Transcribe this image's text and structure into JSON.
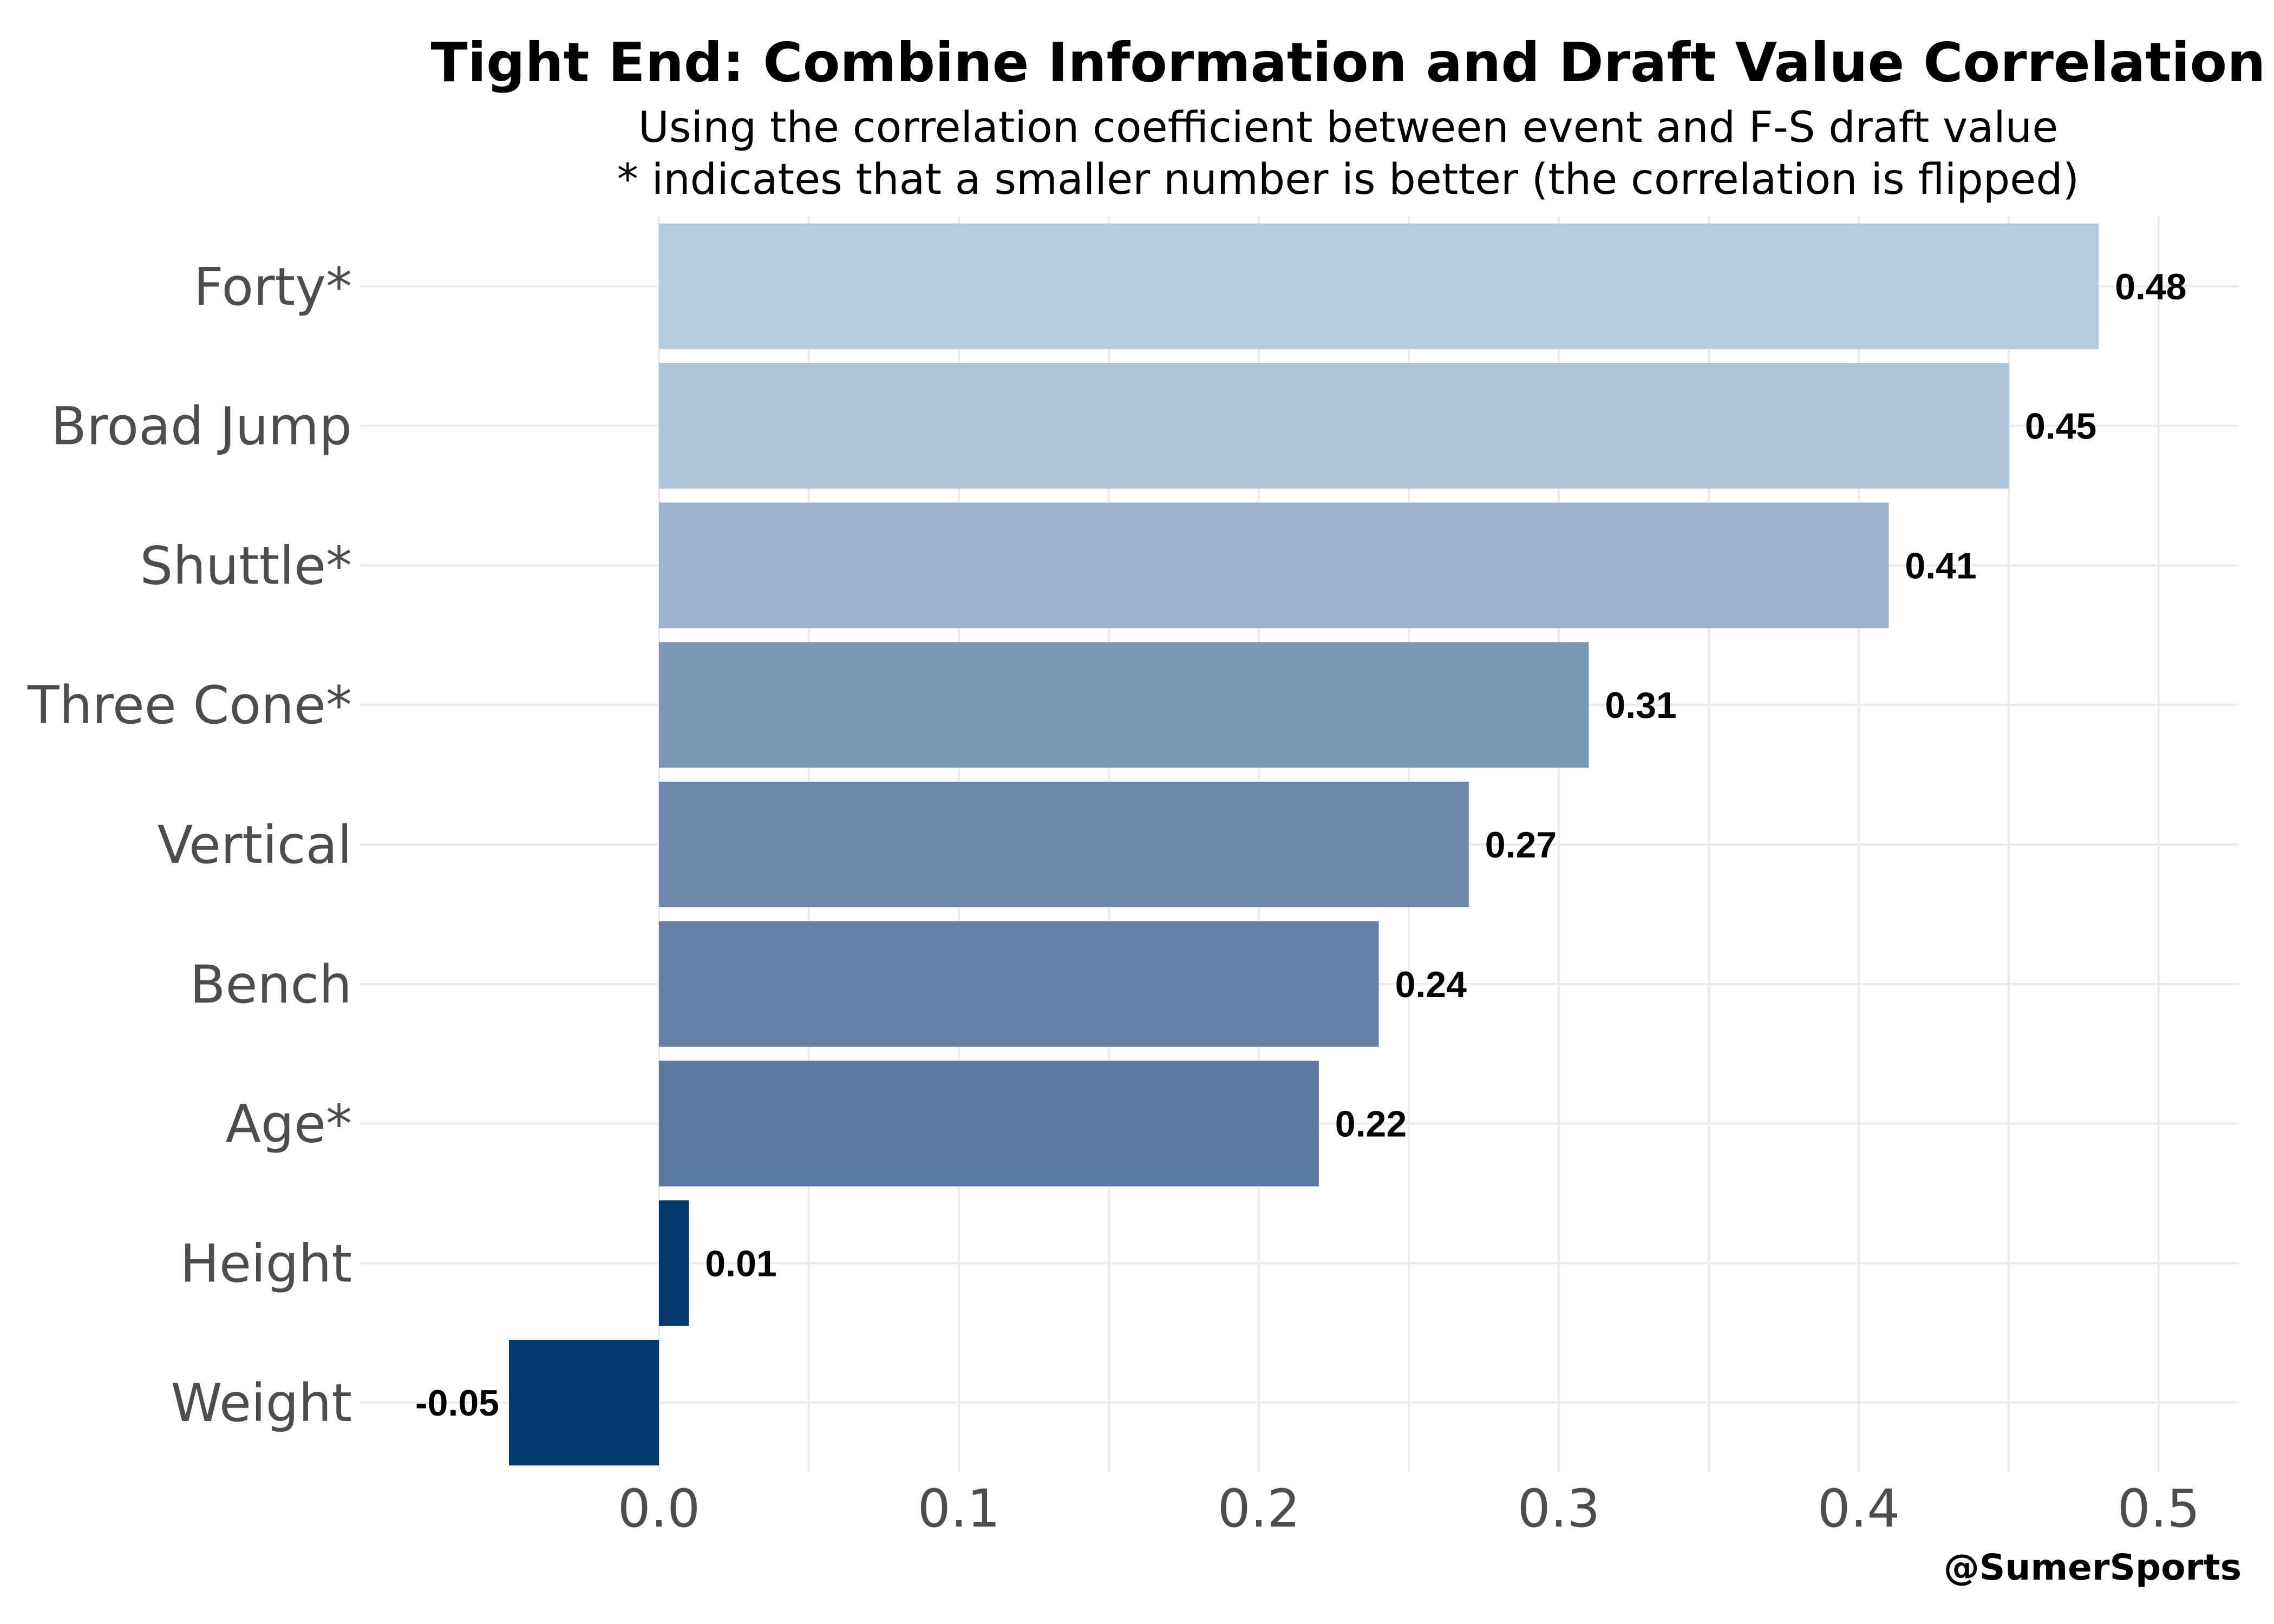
{
  "chart_data": {
    "type": "bar",
    "orientation": "horizontal",
    "title": "Tight End: Combine Information and Draft Value Correlation",
    "subtitle_lines": [
      "Using the correlation coefficient between event and F-S draft value",
      "* indicates that a smaller number is better (the correlation is flipped)"
    ],
    "categories": [
      "Forty*",
      "Broad Jump",
      "Shuttle*",
      "Three Cone*",
      "Vertical",
      "Bench",
      "Age*",
      "Height",
      "Weight"
    ],
    "values": [
      0.48,
      0.45,
      0.41,
      0.31,
      0.27,
      0.24,
      0.22,
      0.01,
      -0.05
    ],
    "value_labels": [
      "0.48",
      "0.45",
      "0.41",
      "0.31",
      "0.27",
      "0.24",
      "0.22",
      "0.01",
      "-0.05"
    ],
    "bar_colors": [
      "#b3cde0",
      "#aac4d9",
      "#9bb4cd",
      "#7b95b5",
      "#6f89ad",
      "#6480a6",
      "#5b789e",
      "#03396c",
      "#03396c"
    ],
    "xlim": [
      -0.1,
      0.53
    ],
    "xticks": [
      0.0,
      0.1,
      0.2,
      0.3,
      0.4,
      0.5
    ],
    "xtick_labels": [
      "0.0",
      "0.1",
      "0.2",
      "0.3",
      "0.4",
      "0.5"
    ],
    "xlabel": "",
    "ylabel": "",
    "grid": true,
    "legend": "none"
  },
  "caption": "@SumerSports"
}
